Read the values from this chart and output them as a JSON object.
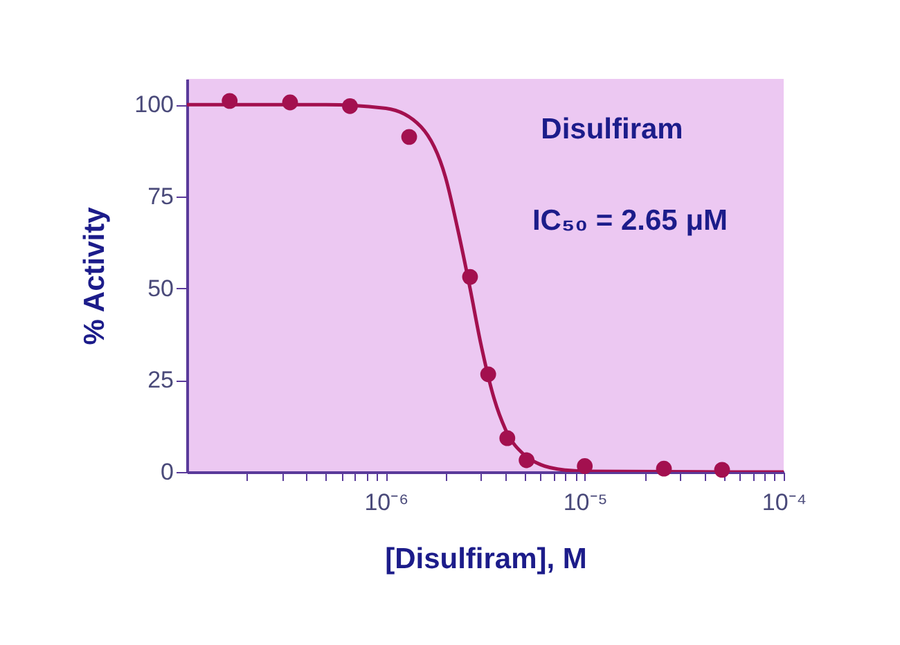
{
  "chart_data": {
    "type": "scatter",
    "xlabel": "[Disulfiram], M",
    "ylabel": "% Activity",
    "log": "x",
    "grid": false,
    "marker": "circle",
    "line_style": "solid",
    "xlim": [
      1e-07,
      0.0001
    ],
    "ylim": [
      0,
      107
    ],
    "xticks": [
      {
        "value": 2e-07,
        "label": null
      },
      {
        "value": 3e-07,
        "label": null
      },
      {
        "value": 4e-07,
        "label": null
      },
      {
        "value": 5e-07,
        "label": null
      },
      {
        "value": 6e-07,
        "label": null
      },
      {
        "value": 7e-07,
        "label": null
      },
      {
        "value": 8e-07,
        "label": null
      },
      {
        "value": 9e-07,
        "label": null
      },
      {
        "value": 1e-06,
        "label": "10⁻⁶"
      },
      {
        "value": 2e-06,
        "label": null
      },
      {
        "value": 3e-06,
        "label": null
      },
      {
        "value": 4e-06,
        "label": null
      },
      {
        "value": 5e-06,
        "label": null
      },
      {
        "value": 6e-06,
        "label": null
      },
      {
        "value": 7e-06,
        "label": null
      },
      {
        "value": 8e-06,
        "label": null
      },
      {
        "value": 9e-06,
        "label": null
      },
      {
        "value": 1e-05,
        "label": "10⁻⁵"
      },
      {
        "value": 2e-05,
        "label": null
      },
      {
        "value": 3e-05,
        "label": null
      },
      {
        "value": 4e-05,
        "label": null
      },
      {
        "value": 5e-05,
        "label": null
      },
      {
        "value": 6e-05,
        "label": null
      },
      {
        "value": 7e-05,
        "label": null
      },
      {
        "value": 8e-05,
        "label": null
      },
      {
        "value": 9e-05,
        "label": null
      },
      {
        "value": 0.0001,
        "label": "10⁻⁴"
      }
    ],
    "yticks": [
      0,
      25,
      50,
      75,
      100
    ],
    "series": [
      {
        "type": "line",
        "marker": "none",
        "color": "#a3104f",
        "x": [
          1e-07,
          5e-07,
          1e-06,
          1.5e-06,
          2e-06,
          2.3e-06,
          2.65e-06,
          3e-06,
          3.5e-06,
          4e-06,
          5e-06,
          6e-06,
          8e-06,
          1e-05,
          5e-05,
          0.0001
        ],
        "values": [
          100,
          100,
          99,
          94,
          80,
          66,
          50,
          35,
          20,
          11.5,
          4.5,
          2,
          0.5,
          0.2,
          0,
          0
        ]
      },
      {
        "color": "#a3104f",
        "x": [
          1.64e-07,
          3.3e-07,
          6.6e-07,
          1.31e-06,
          2.65e-06,
          3.27e-06,
          4.08e-06,
          5.1e-06,
          1e-05,
          2.5e-05,
          4.9e-05
        ],
        "values": [
          101,
          100.6,
          99.6,
          91.2,
          53.1,
          26.6,
          9.2,
          3.2,
          1.6,
          0.9,
          0.6
        ]
      }
    ],
    "annotations": [
      "Disulfiram",
      "IC₅₀ = 2.65 μM"
    ]
  }
}
